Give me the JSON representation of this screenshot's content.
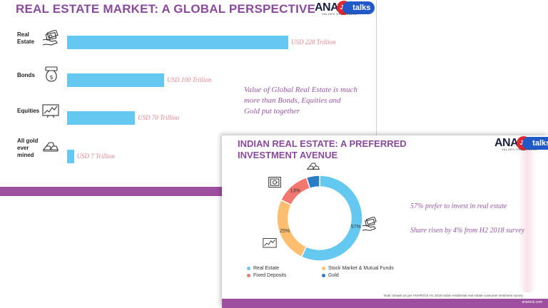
{
  "slide1": {
    "title": "REAL ESTATE MARKET: A GLOBAL PERSPECTIVE",
    "logo": {
      "brand": "ANA",
      "jio": "Jio",
      "talks": "talks",
      "tagline": "VALUES OVER VALUE"
    },
    "note": "Value of Global Real Estate is much more than Bonds, Equities and Gold put together"
  },
  "slide2": {
    "title": "INDIAN REAL ESTATE: A PREFERRED INVESTMENT AVENUE",
    "logo": {
      "brand": "ANA",
      "jio": "Jio",
      "talks": "talks",
      "tagline": "VALUES OVER VALUE"
    },
    "note_1": "57% prefer to invest in real estate",
    "note_2": "Share risen by 4% from H2 2018 survey",
    "footnote": "Note: Details as per ANAROCK H1 2019 Indian residential real estate consumer sentiment survey",
    "site": "anarock.com"
  },
  "chart_data": [
    {
      "type": "bar",
      "orientation": "horizontal",
      "categories": [
        "Real Estate",
        "Bonds",
        "Equities",
        "All gold ever mined"
      ],
      "category_lines": [
        [
          "Real",
          "Estate"
        ],
        [
          "Bonds"
        ],
        [
          "Equities"
        ],
        [
          "All gold",
          "ever",
          "mined"
        ]
      ],
      "values": [
        228,
        100,
        70,
        7
      ],
      "value_labels": [
        "USD 228 Trillion",
        "USD 100 Trillion",
        "USD 70 Trillion",
        "USD 7 Trillion"
      ],
      "unit": "USD Trillion",
      "xlim": [
        0,
        228
      ],
      "bar_color": "#64c8f0",
      "label_color": "#e5838b",
      "icons": [
        "money-hand-icon",
        "money-bag-icon",
        "stock-chart-icon",
        "gold-bars-icon"
      ]
    },
    {
      "type": "pie",
      "style": "donut",
      "labels": [
        "Real Estate",
        "Stock Market & Mutual Funds",
        "Fixed Deposits",
        "Gold"
      ],
      "values": [
        57,
        25,
        13,
        5
      ],
      "slice_labels": [
        "57%",
        "25%",
        "13%",
        ""
      ],
      "colors": [
        "#64c8f0",
        "#fdbf6f",
        "#f2776f",
        "#2a7dc4"
      ],
      "legend_position": "bottom",
      "icons": [
        "money-hand-icon",
        "stock-chart-icon",
        "safe-icon",
        "gold-bars-icon"
      ]
    }
  ]
}
